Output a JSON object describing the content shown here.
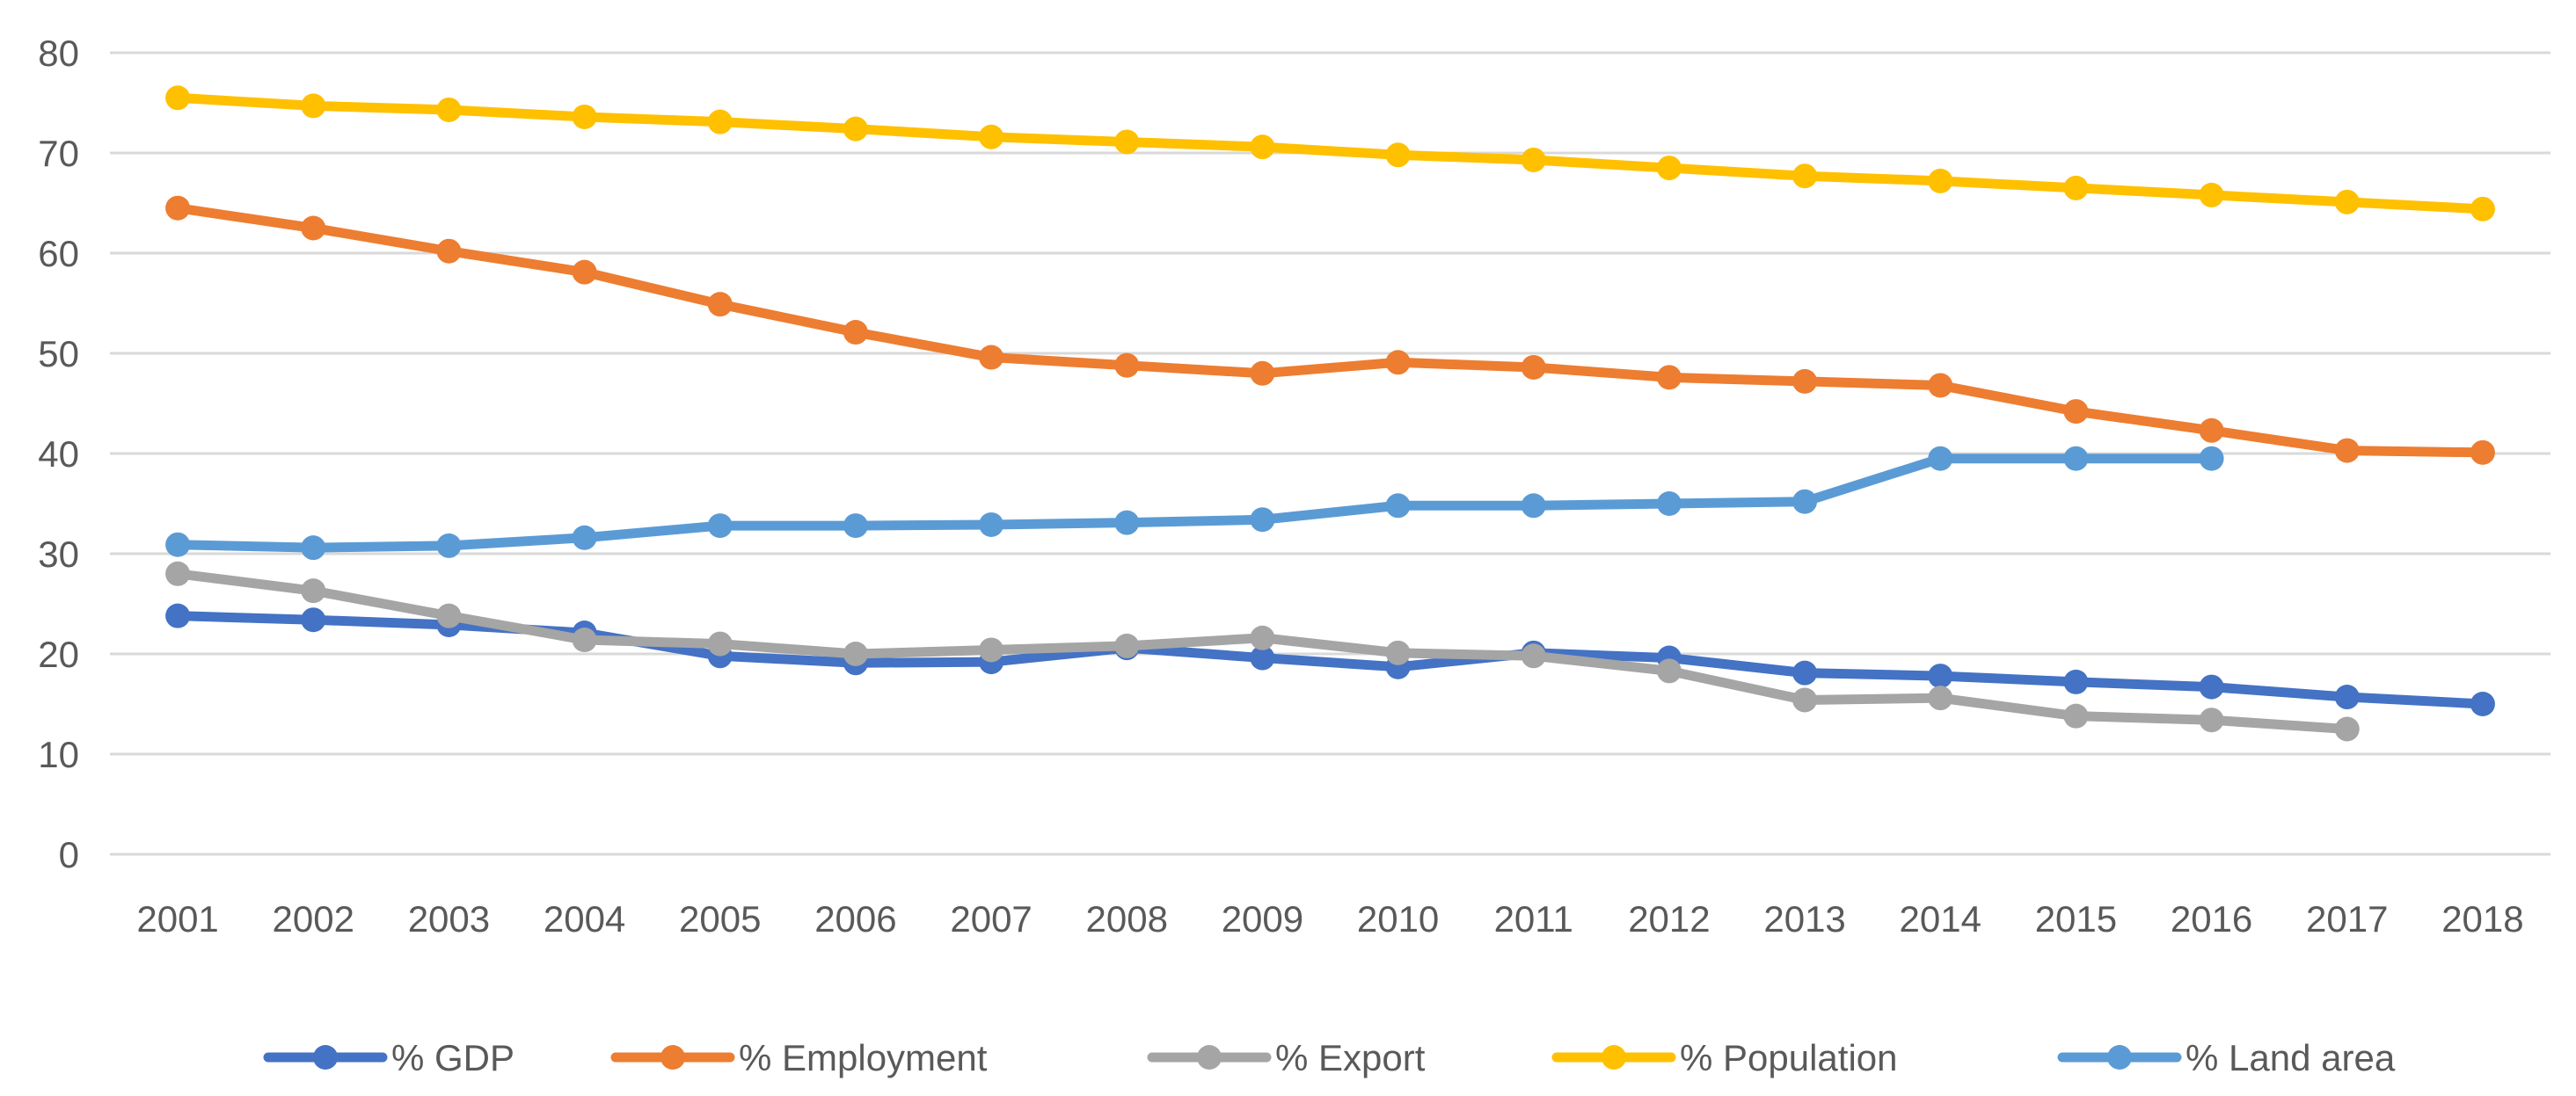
{
  "chart_data": {
    "type": "line",
    "title": "",
    "xlabel": "",
    "ylabel": "",
    "categories": [
      "2001",
      "2002",
      "2003",
      "2004",
      "2005",
      "2006",
      "2007",
      "2008",
      "2009",
      "2010",
      "2011",
      "2012",
      "2013",
      "2014",
      "2015",
      "2016",
      "2017",
      "2018"
    ],
    "ylim": [
      0,
      80
    ],
    "yticks": [
      0,
      10,
      20,
      30,
      40,
      50,
      60,
      70,
      80
    ],
    "grid": true,
    "legend_position": "bottom",
    "series": [
      {
        "name": "% GDP",
        "color": "#4472c4",
        "values": [
          23.8,
          23.4,
          22.9,
          22.1,
          19.8,
          19.1,
          19.2,
          20.6,
          19.6,
          18.7,
          20.1,
          19.6,
          18.1,
          17.8,
          17.2,
          16.7,
          15.7,
          15.0
        ]
      },
      {
        "name": "% Employment",
        "color": "#ed7d31",
        "values": [
          64.5,
          62.5,
          60.2,
          58.1,
          54.9,
          52.1,
          49.6,
          48.8,
          48.0,
          49.1,
          48.6,
          47.6,
          47.2,
          46.8,
          44.2,
          42.3,
          40.3,
          40.1
        ]
      },
      {
        "name": "% Export",
        "color": "#a5a5a5",
        "values": [
          28.0,
          26.3,
          23.8,
          21.4,
          21.0,
          20.0,
          20.4,
          20.8,
          21.6,
          20.1,
          19.8,
          18.3,
          15.4,
          15.6,
          13.8,
          13.4,
          12.5,
          null
        ]
      },
      {
        "name": "% Population",
        "color": "#ffc000",
        "values": [
          75.5,
          74.7,
          74.3,
          73.6,
          73.1,
          72.4,
          71.6,
          71.1,
          70.6,
          69.8,
          69.3,
          68.5,
          67.7,
          67.2,
          66.5,
          65.8,
          65.1,
          64.4
        ]
      },
      {
        "name": "% Land area",
        "color": "#5b9bd5",
        "values": [
          30.9,
          30.6,
          30.8,
          31.6,
          32.8,
          32.8,
          32.9,
          33.1,
          33.4,
          34.8,
          34.8,
          35.0,
          35.2,
          39.5,
          39.5,
          39.5,
          null,
          null
        ]
      }
    ]
  }
}
